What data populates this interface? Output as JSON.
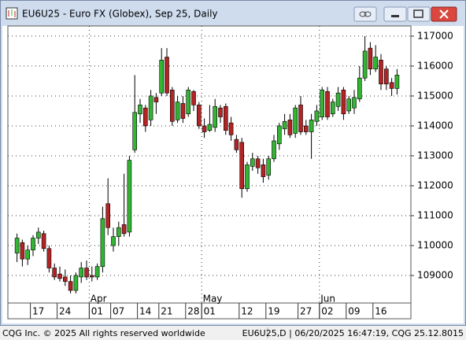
{
  "window": {
    "footer_left": "CQG Inc. © 2025 All rights reserved worldwide",
    "footer_right": "EU6U25,D | 06/20/2025 16:47:19, CQG 25.12.8015"
  },
  "chart_data": {
    "type": "candlestick",
    "title": "EU6U25 - Euro FX (Globex), Sep 25, Daily",
    "categories": [
      null,
      null,
      null,
      "17",
      null,
      null,
      null,
      null,
      "24",
      null,
      null,
      null,
      null,
      null,
      "01",
      null,
      null,
      null,
      "07",
      null,
      null,
      null,
      null,
      "14",
      null,
      null,
      null,
      "21",
      null,
      null,
      null,
      null,
      "28",
      null,
      null,
      "01",
      null,
      null,
      null,
      null,
      null,
      null,
      "12",
      null,
      null,
      null,
      null,
      "19",
      null,
      null,
      null,
      null,
      null,
      "27",
      null,
      null,
      null,
      "02",
      null,
      null,
      null,
      null,
      "09",
      null,
      null,
      null,
      null,
      "16",
      null,
      null,
      null,
      null
    ],
    "month_labels": [
      {
        "label": "Apr",
        "start": 14
      },
      {
        "label": "May",
        "start": 35
      },
      {
        "label": "Jun",
        "start": 57
      }
    ],
    "open": [
      109750,
      110100,
      109550,
      109850,
      110250,
      110400,
      109900,
      109250,
      109050,
      108950,
      108800,
      108500,
      108950,
      109250,
      109000,
      108950,
      109300,
      111400,
      110000,
      110300,
      110700,
      110450,
      113200,
      114400,
      114600,
      114200,
      114950,
      115100,
      116300,
      115200,
      114200,
      114750,
      114400,
      115150,
      114700,
      114000,
      113850,
      113950,
      114600,
      114650,
      114100,
      113550,
      113450,
      111900,
      112650,
      112900,
      112700,
      112350,
      112900,
      113400,
      113900,
      114200,
      113750,
      114700,
      114000,
      113800,
      114150,
      114300,
      115150,
      114400,
      114650,
      115200,
      114500,
      114600,
      114900,
      115600,
      116600,
      115900,
      116200,
      115900,
      115450,
      115250
    ],
    "high": [
      110400,
      110200,
      110000,
      110350,
      110600,
      110500,
      110000,
      109400,
      109300,
      109200,
      109000,
      109100,
      109450,
      109500,
      109300,
      109400,
      111300,
      112250,
      110600,
      110800,
      112400,
      113000,
      115700,
      114900,
      114700,
      115200,
      115100,
      116600,
      116600,
      115300,
      115000,
      115000,
      115300,
      115200,
      114800,
      114250,
      114700,
      114900,
      114700,
      114750,
      114300,
      113700,
      113600,
      112800,
      113100,
      113000,
      112900,
      113000,
      113700,
      114100,
      114400,
      114400,
      114700,
      115000,
      114200,
      114400,
      114700,
      115300,
      115300,
      114900,
      115300,
      115300,
      115000,
      115200,
      116000,
      117000,
      116800,
      116700,
      116400,
      116000,
      115600,
      115900
    ],
    "low": [
      109450,
      109300,
      109350,
      109650,
      110050,
      109800,
      109100,
      108850,
      108800,
      108650,
      108400,
      108400,
      108750,
      108850,
      108800,
      108850,
      109100,
      110350,
      109800,
      110000,
      110300,
      110300,
      113100,
      114100,
      113800,
      114000,
      114400,
      115000,
      115000,
      114000,
      114100,
      114100,
      114300,
      114500,
      113900,
      113600,
      113800,
      113800,
      114100,
      113700,
      113500,
      113100,
      111600,
      111800,
      112500,
      112400,
      112100,
      112200,
      112800,
      113200,
      113700,
      113600,
      113600,
      113700,
      113700,
      112900,
      114000,
      114200,
      114200,
      114300,
      114500,
      114200,
      114400,
      114400,
      114800,
      115500,
      115700,
      115800,
      115200,
      115200,
      115000,
      115050
    ],
    "close": [
      110250,
      109550,
      109850,
      110250,
      110450,
      109900,
      109250,
      108950,
      108900,
      108800,
      108500,
      109000,
      109250,
      108950,
      108950,
      109300,
      110900,
      110600,
      110300,
      110600,
      110400,
      112850,
      114450,
      114700,
      114000,
      115000,
      114800,
      116200,
      115100,
      114150,
      114800,
      114250,
      115200,
      114700,
      114000,
      113800,
      114050,
      114650,
      114300,
      113850,
      113700,
      113200,
      111900,
      112700,
      112900,
      112600,
      112300,
      112900,
      113500,
      114000,
      114150,
      113700,
      114600,
      113800,
      113800,
      114200,
      114500,
      115200,
      114300,
      114800,
      115100,
      114400,
      114900,
      114950,
      115600,
      116500,
      115900,
      116300,
      115400,
      115400,
      115250,
      115700
    ],
    "up_color": "#33b533",
    "down_color": "#b32424",
    "ylim": [
      108080,
      117340
    ],
    "yticks": [
      109000,
      110000,
      111000,
      112000,
      113000,
      114000,
      115000,
      116000,
      117000
    ],
    "grid": true
  }
}
